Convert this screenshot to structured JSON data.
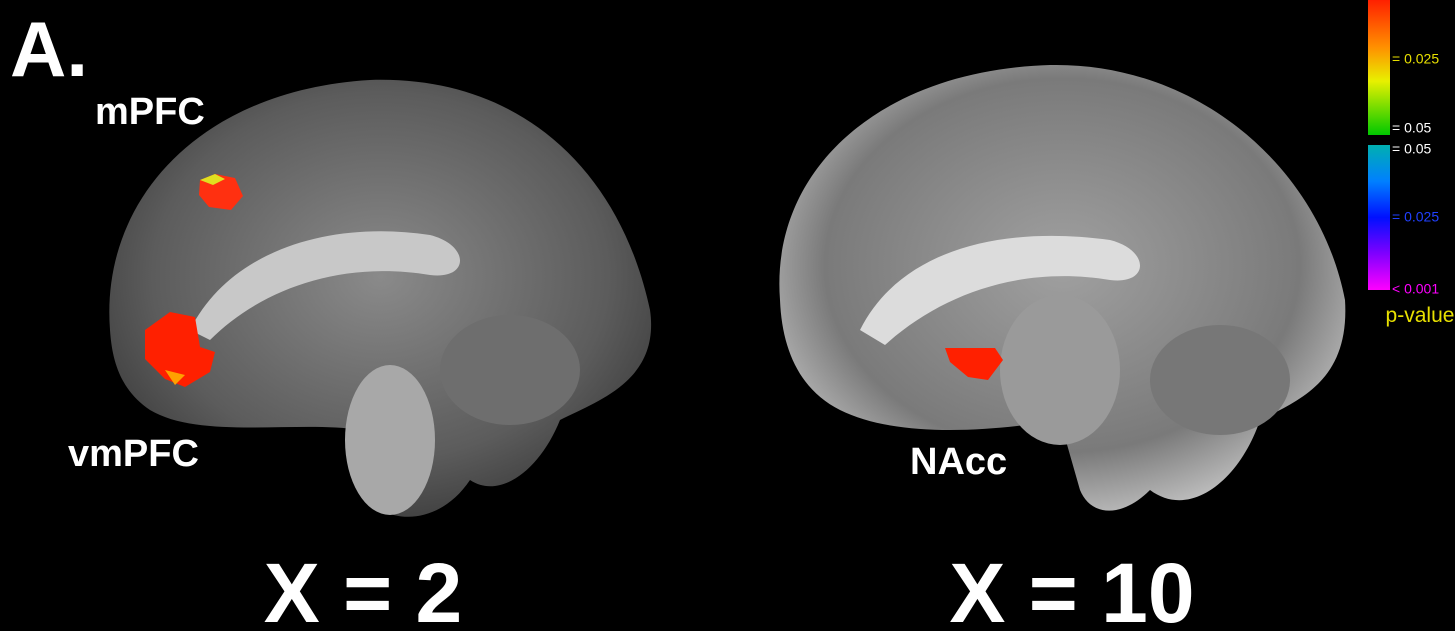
{
  "panel_label": "A.",
  "slices": [
    {
      "caption": "X = 2",
      "regions": [
        "mPFC",
        "vmPFC"
      ]
    },
    {
      "caption": "X = 10",
      "regions": [
        "NAcc"
      ]
    }
  ],
  "colorbar": {
    "title": "p-value",
    "positive_labels": [
      "= 0.025",
      "= 0.05"
    ],
    "negative_labels": [
      "= 0.05",
      "= 0.025",
      "< 0.001"
    ]
  }
}
